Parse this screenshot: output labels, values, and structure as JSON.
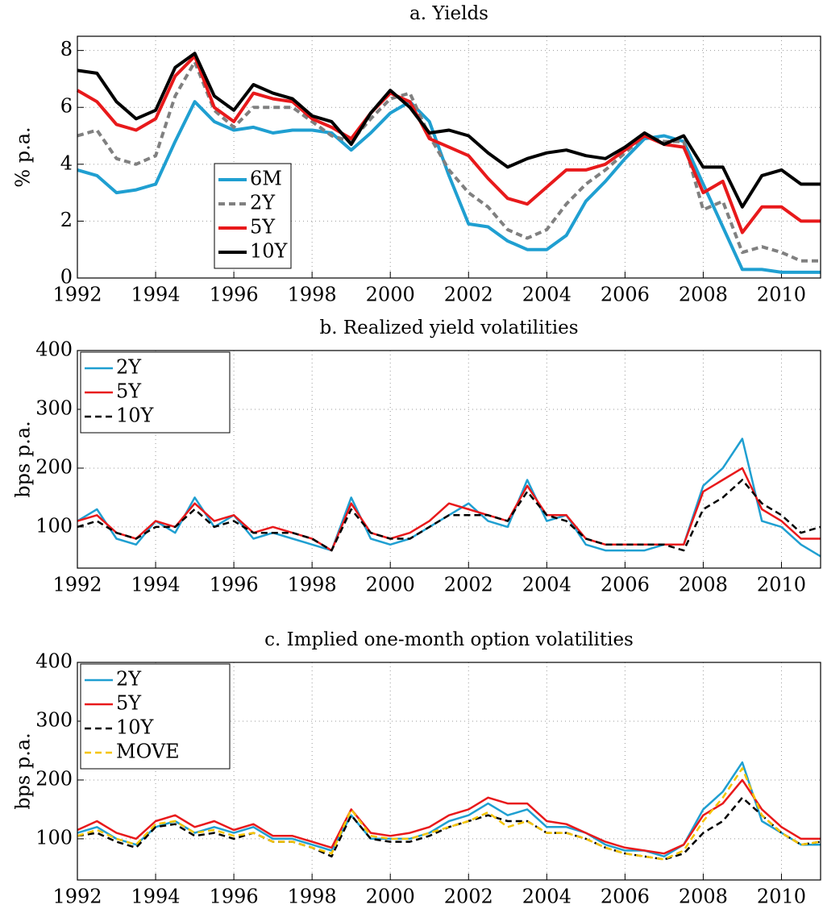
{
  "chart_data": [
    {
      "type": "line",
      "title": "a. Yields",
      "ylabel": "% p.a.",
      "grid": true,
      "legend": "lower left",
      "xlim": [
        1992,
        2011
      ],
      "xticks": [
        1992,
        1994,
        1996,
        1998,
        2000,
        2002,
        2004,
        2006,
        2008,
        2010
      ],
      "ylim": [
        0,
        8.5
      ],
      "yticks": [
        0,
        2,
        4,
        6,
        8
      ],
      "x": [
        1992,
        1992.5,
        1993,
        1993.5,
        1994,
        1994.5,
        1995,
        1995.5,
        1996,
        1996.5,
        1997,
        1997.5,
        1998,
        1998.5,
        1999,
        1999.5,
        2000,
        2000.5,
        2001,
        2001.5,
        2002,
        2002.5,
        2003,
        2003.5,
        2004,
        2004.5,
        2005,
        2005.5,
        2006,
        2006.5,
        2007,
        2007.5,
        2008,
        2008.5,
        2009,
        2009.5,
        2010,
        2010.5,
        2011
      ],
      "series": [
        {
          "name": "6M",
          "color": "#1f9fd1",
          "values": [
            3.8,
            3.6,
            3.0,
            3.1,
            3.3,
            4.8,
            6.2,
            5.5,
            5.2,
            5.3,
            5.1,
            5.2,
            5.2,
            5.1,
            4.5,
            5.1,
            5.8,
            6.2,
            5.5,
            3.6,
            1.9,
            1.8,
            1.3,
            1.0,
            1.0,
            1.5,
            2.7,
            3.4,
            4.2,
            4.9,
            5.0,
            4.8,
            3.3,
            1.8,
            0.3,
            0.3,
            0.2,
            0.2,
            0.2
          ]
        },
        {
          "name": "2Y",
          "color": "#808080",
          "dashed": true,
          "values": [
            5.0,
            5.2,
            4.2,
            4.0,
            4.3,
            6.4,
            7.6,
            5.9,
            5.3,
            6.0,
            6.0,
            6.0,
            5.5,
            5.0,
            4.8,
            5.6,
            6.3,
            6.5,
            5.0,
            3.8,
            3.0,
            2.5,
            1.7,
            1.4,
            1.7,
            2.6,
            3.3,
            3.8,
            4.4,
            5.0,
            4.8,
            4.8,
            2.4,
            2.7,
            0.9,
            1.1,
            0.9,
            0.6,
            0.6
          ]
        },
        {
          "name": "5Y",
          "color": "#e8191b",
          "values": [
            6.6,
            6.2,
            5.4,
            5.2,
            5.6,
            7.1,
            7.8,
            6.0,
            5.5,
            6.5,
            6.3,
            6.2,
            5.6,
            5.3,
            4.9,
            5.8,
            6.5,
            6.2,
            4.9,
            4.6,
            4.3,
            3.5,
            2.8,
            2.6,
            3.2,
            3.8,
            3.8,
            4.0,
            4.5,
            5.0,
            4.7,
            4.6,
            3.0,
            3.4,
            1.6,
            2.5,
            2.5,
            2.0,
            2.0
          ]
        },
        {
          "name": "10Y",
          "color": "#000000",
          "values": [
            7.3,
            7.2,
            6.2,
            5.6,
            5.9,
            7.4,
            7.9,
            6.4,
            5.9,
            6.8,
            6.5,
            6.3,
            5.7,
            5.5,
            4.7,
            5.8,
            6.6,
            6.0,
            5.1,
            5.2,
            5.0,
            4.4,
            3.9,
            4.2,
            4.4,
            4.5,
            4.3,
            4.2,
            4.6,
            5.1,
            4.7,
            5.0,
            3.9,
            3.9,
            2.5,
            3.6,
            3.8,
            3.3,
            3.3
          ]
        }
      ]
    },
    {
      "type": "line",
      "title": "b. Realized yield volatilities",
      "ylabel": "bps p.a.",
      "grid": true,
      "legend": "upper left",
      "xlim": [
        1992,
        2011
      ],
      "xticks": [
        1992,
        1994,
        1996,
        1998,
        2000,
        2002,
        2004,
        2006,
        2008,
        2010
      ],
      "ylim": [
        30,
        400
      ],
      "yticks": [
        100,
        200,
        300,
        400
      ],
      "x": [
        1992,
        1992.5,
        1993,
        1993.5,
        1994,
        1994.5,
        1995,
        1995.5,
        1996,
        1996.5,
        1997,
        1997.5,
        1998,
        1998.5,
        1999,
        1999.5,
        2000,
        2000.5,
        2001,
        2001.5,
        2002,
        2002.5,
        2003,
        2003.5,
        2004,
        2004.5,
        2005,
        2005.5,
        2006,
        2006.5,
        2007,
        2007.5,
        2008,
        2008.5,
        2009,
        2009.5,
        2010,
        2010.5,
        2011
      ],
      "series": [
        {
          "name": "2Y",
          "color": "#1f9fd1",
          "values": [
            110,
            130,
            80,
            70,
            110,
            90,
            150,
            100,
            120,
            80,
            90,
            80,
            70,
            60,
            150,
            80,
            70,
            80,
            100,
            120,
            140,
            110,
            100,
            180,
            110,
            120,
            70,
            60,
            60,
            60,
            70,
            70,
            170,
            200,
            250,
            110,
            100,
            70,
            50
          ]
        },
        {
          "name": "5Y",
          "color": "#e8191b",
          "values": [
            110,
            120,
            90,
            80,
            110,
            100,
            140,
            110,
            120,
            90,
            100,
            90,
            80,
            60,
            140,
            90,
            80,
            90,
            110,
            140,
            130,
            120,
            110,
            170,
            120,
            120,
            80,
            70,
            70,
            70,
            70,
            70,
            160,
            180,
            200,
            130,
            110,
            80,
            80
          ]
        },
        {
          "name": "10Y",
          "color": "#000000",
          "dashed": true,
          "values": [
            100,
            110,
            90,
            80,
            100,
            100,
            130,
            100,
            110,
            90,
            90,
            90,
            80,
            60,
            130,
            90,
            80,
            80,
            100,
            120,
            120,
            120,
            110,
            160,
            120,
            110,
            80,
            70,
            70,
            70,
            70,
            60,
            130,
            150,
            180,
            140,
            120,
            90,
            100
          ]
        }
      ]
    },
    {
      "type": "line",
      "title": "c. Implied one-month option volatilities",
      "ylabel": "bps p.a.",
      "grid": true,
      "legend": "upper left",
      "xlim": [
        1992,
        2011
      ],
      "xticks": [
        1992,
        1994,
        1996,
        1998,
        2000,
        2002,
        2004,
        2006,
        2008,
        2010
      ],
      "ylim": [
        30,
        400
      ],
      "yticks": [
        100,
        200,
        300,
        400
      ],
      "x": [
        1992,
        1992.5,
        1993,
        1993.5,
        1994,
        1994.5,
        1995,
        1995.5,
        1996,
        1996.5,
        1997,
        1997.5,
        1998,
        1998.5,
        1999,
        1999.5,
        2000,
        2000.5,
        2001,
        2001.5,
        2002,
        2002.5,
        2003,
        2003.5,
        2004,
        2004.5,
        2005,
        2005.5,
        2006,
        2006.5,
        2007,
        2007.5,
        2008,
        2008.5,
        2009,
        2009.5,
        2010,
        2010.5,
        2011
      ],
      "series": [
        {
          "name": "2Y",
          "color": "#1f9fd1",
          "values": [
            110,
            120,
            100,
            90,
            120,
            130,
            110,
            120,
            110,
            120,
            100,
            100,
            90,
            80,
            140,
            100,
            100,
            100,
            110,
            130,
            140,
            160,
            140,
            150,
            120,
            120,
            110,
            90,
            80,
            80,
            70,
            90,
            150,
            180,
            230,
            130,
            110,
            90,
            90
          ]
        },
        {
          "name": "5Y",
          "color": "#e8191b",
          "values": [
            115,
            130,
            110,
            100,
            130,
            140,
            120,
            130,
            115,
            125,
            105,
            105,
            95,
            85,
            150,
            110,
            105,
            110,
            120,
            140,
            150,
            170,
            160,
            160,
            130,
            125,
            110,
            95,
            85,
            80,
            75,
            90,
            140,
            160,
            200,
            150,
            120,
            100,
            100
          ]
        },
        {
          "name": "10Y",
          "color": "#000000",
          "dashed": true,
          "values": [
            105,
            110,
            95,
            85,
            120,
            125,
            105,
            110,
            100,
            110,
            95,
            95,
            85,
            70,
            140,
            100,
            95,
            95,
            105,
            120,
            130,
            140,
            130,
            130,
            110,
            110,
            100,
            85,
            75,
            70,
            65,
            75,
            110,
            130,
            170,
            140,
            110,
            90,
            95
          ]
        },
        {
          "name": "MOVE",
          "color": "#f5c400",
          "dashed": true,
          "values": [
            105,
            115,
            100,
            90,
            125,
            130,
            110,
            115,
            105,
            110,
            95,
            95,
            85,
            75,
            150,
            105,
            100,
            100,
            110,
            120,
            130,
            145,
            120,
            130,
            110,
            110,
            100,
            85,
            75,
            70,
            65,
            80,
            130,
            170,
            220,
            140,
            110,
            90,
            95
          ]
        }
      ]
    }
  ]
}
